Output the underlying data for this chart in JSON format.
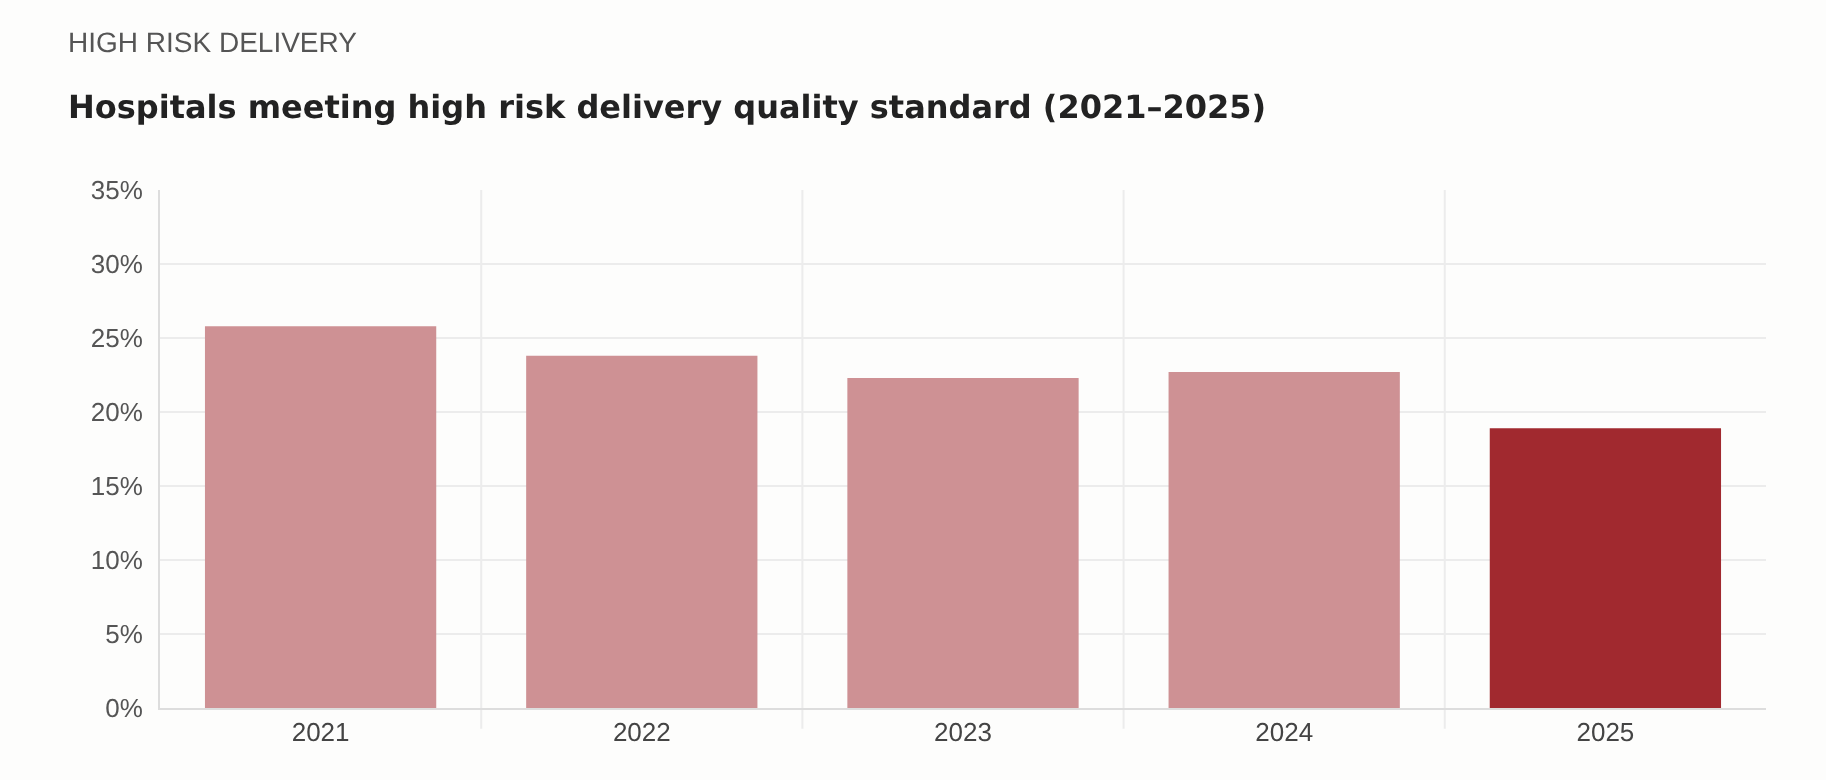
{
  "chart_data": {
    "type": "bar",
    "subtitle": "HIGH RISK DELIVERY",
    "title": "Hospitals meeting high risk delivery quality standard (2021–2025)",
    "categories": [
      "2021",
      "2022",
      "2023",
      "2024",
      "2025"
    ],
    "values": [
      25.8,
      23.8,
      22.3,
      22.7,
      18.9
    ],
    "colors": [
      "#ce9194",
      "#ce9194",
      "#ce9194",
      "#ce9194",
      "#a1292f"
    ],
    "ylim": [
      0,
      35
    ],
    "yticks": [
      {
        "value": 0,
        "label": "0%"
      },
      {
        "value": 5,
        "label": "5%"
      },
      {
        "value": 10,
        "label": "10%"
      },
      {
        "value": 15,
        "label": "15%"
      },
      {
        "value": 20,
        "label": "20%"
      },
      {
        "value": 25,
        "label": "25%"
      },
      {
        "value": 30,
        "label": "30%"
      },
      {
        "value": 35,
        "label": "35%"
      }
    ],
    "grid": true
  }
}
